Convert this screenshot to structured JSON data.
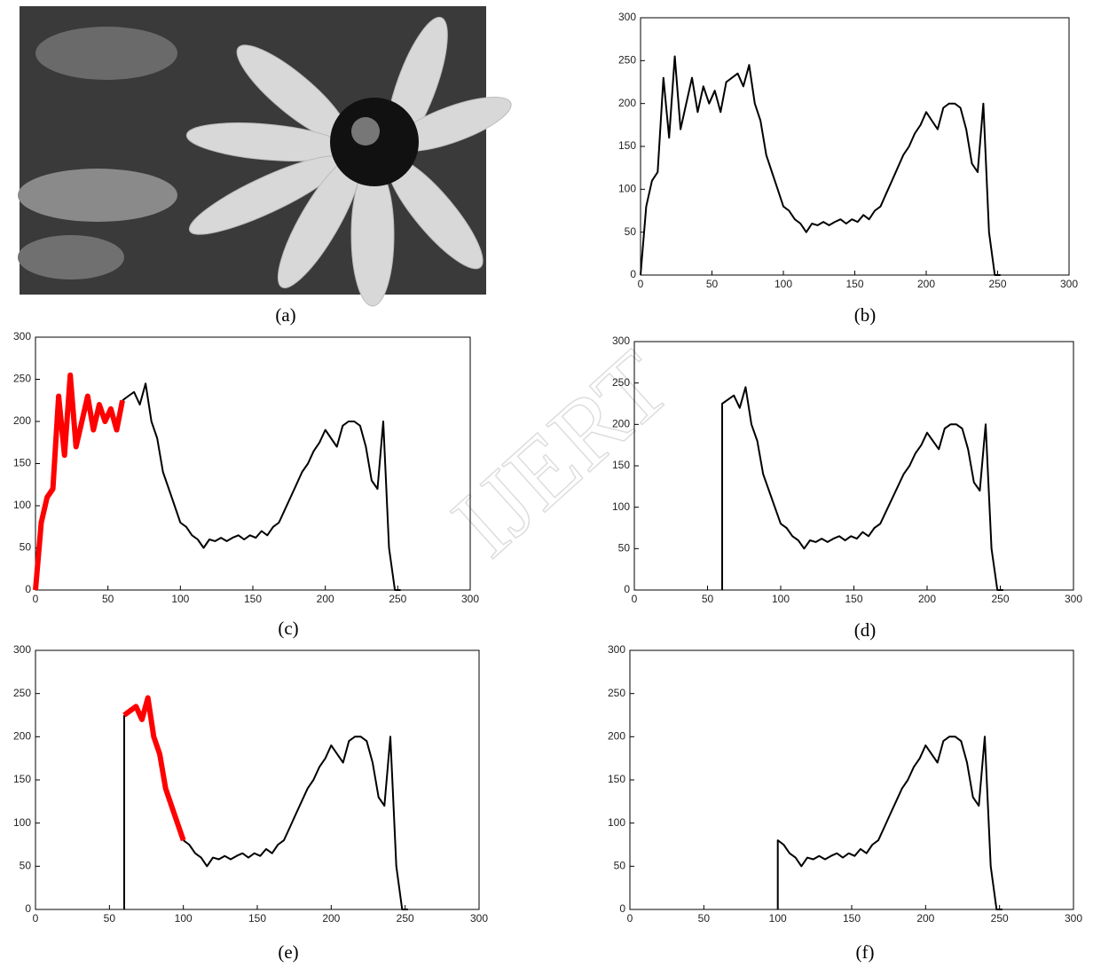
{
  "image_panel": {
    "caption": "(a)"
  },
  "watermark": "IJERT",
  "chart_data": [
    {
      "type": "line",
      "caption": "(b)",
      "xlim": [
        0,
        300
      ],
      "ylim": [
        0,
        300
      ],
      "xticks": [
        0,
        50,
        100,
        150,
        200,
        250,
        300
      ],
      "yticks": [
        0,
        50,
        100,
        150,
        200,
        250,
        300
      ],
      "series": [
        {
          "color": "#000000",
          "x": [
            0,
            4,
            8,
            12,
            16,
            20,
            24,
            28,
            32,
            36,
            40,
            44,
            48,
            52,
            56,
            60,
            64,
            68,
            72,
            76,
            80,
            84,
            88,
            92,
            96,
            100,
            104,
            108,
            112,
            116,
            120,
            124,
            128,
            132,
            136,
            140,
            144,
            148,
            152,
            156,
            160,
            164,
            168,
            172,
            176,
            180,
            184,
            188,
            192,
            196,
            200,
            204,
            208,
            212,
            216,
            220,
            224,
            228,
            232,
            236,
            240,
            244,
            248,
            252
          ],
          "values": [
            0,
            80,
            110,
            120,
            230,
            160,
            255,
            170,
            200,
            230,
            190,
            220,
            200,
            215,
            190,
            225,
            230,
            235,
            220,
            245,
            200,
            180,
            140,
            120,
            100,
            80,
            75,
            65,
            60,
            50,
            60,
            58,
            62,
            58,
            62,
            65,
            60,
            65,
            62,
            70,
            65,
            75,
            80,
            95,
            110,
            125,
            140,
            150,
            165,
            175,
            190,
            180,
            170,
            195,
            200,
            200,
            195,
            170,
            130,
            120,
            200,
            50,
            0,
            0
          ]
        }
      ]
    },
    {
      "type": "line",
      "caption": "(c)",
      "xlim": [
        0,
        300
      ],
      "ylim": [
        0,
        300
      ],
      "xticks": [
        0,
        50,
        100,
        150,
        200,
        250,
        300
      ],
      "yticks": [
        0,
        50,
        100,
        150,
        200,
        250,
        300
      ],
      "series": [
        {
          "color": "#000000",
          "x": [
            60,
            64,
            68,
            72,
            76,
            80,
            84,
            88,
            92,
            96,
            100,
            104,
            108,
            112,
            116,
            120,
            124,
            128,
            132,
            136,
            140,
            144,
            148,
            152,
            156,
            160,
            164,
            168,
            172,
            176,
            180,
            184,
            188,
            192,
            196,
            200,
            204,
            208,
            212,
            216,
            220,
            224,
            228,
            232,
            236,
            240,
            244,
            248,
            252
          ],
          "values": [
            225,
            230,
            235,
            220,
            245,
            200,
            180,
            140,
            120,
            100,
            80,
            75,
            65,
            60,
            50,
            60,
            58,
            62,
            58,
            62,
            65,
            60,
            65,
            62,
            70,
            65,
            75,
            80,
            95,
            110,
            125,
            140,
            150,
            165,
            175,
            190,
            180,
            170,
            195,
            200,
            200,
            195,
            170,
            130,
            120,
            200,
            50,
            0,
            0
          ]
        },
        {
          "color": "#ff0000",
          "x": [
            0,
            4,
            8,
            12,
            16,
            20,
            24,
            28,
            32,
            36,
            40,
            44,
            48,
            52,
            56,
            60
          ],
          "values": [
            0,
            80,
            110,
            120,
            230,
            160,
            255,
            170,
            200,
            230,
            190,
            220,
            200,
            215,
            190,
            225
          ]
        }
      ]
    },
    {
      "type": "line",
      "caption": "(d)",
      "xlim": [
        0,
        300
      ],
      "ylim": [
        0,
        300
      ],
      "xticks": [
        0,
        50,
        100,
        150,
        200,
        250,
        300
      ],
      "yticks": [
        0,
        50,
        100,
        150,
        200,
        250,
        300
      ],
      "series": [
        {
          "color": "#000000",
          "x": [
            60,
            60,
            64,
            68,
            72,
            76,
            80,
            84,
            88,
            92,
            96,
            100,
            104,
            108,
            112,
            116,
            120,
            124,
            128,
            132,
            136,
            140,
            144,
            148,
            152,
            156,
            160,
            164,
            168,
            172,
            176,
            180,
            184,
            188,
            192,
            196,
            200,
            204,
            208,
            212,
            216,
            220,
            224,
            228,
            232,
            236,
            240,
            244,
            248,
            252
          ],
          "values": [
            0,
            225,
            230,
            235,
            220,
            245,
            200,
            180,
            140,
            120,
            100,
            80,
            75,
            65,
            60,
            50,
            60,
            58,
            62,
            58,
            62,
            65,
            60,
            65,
            62,
            70,
            65,
            75,
            80,
            95,
            110,
            125,
            140,
            150,
            165,
            175,
            190,
            180,
            170,
            195,
            200,
            200,
            195,
            170,
            130,
            120,
            200,
            50,
            0,
            0
          ]
        }
      ]
    },
    {
      "type": "line",
      "caption": "(e)",
      "xlim": [
        0,
        300
      ],
      "ylim": [
        0,
        300
      ],
      "xticks": [
        0,
        50,
        100,
        150,
        200,
        250,
        300
      ],
      "yticks": [
        0,
        50,
        100,
        150,
        200,
        250,
        300
      ],
      "series": [
        {
          "color": "#000000",
          "x": [
            60,
            60
          ],
          "values": [
            0,
            225
          ]
        },
        {
          "color": "#000000",
          "x": [
            100,
            104,
            108,
            112,
            116,
            120,
            124,
            128,
            132,
            136,
            140,
            144,
            148,
            152,
            156,
            160,
            164,
            168,
            172,
            176,
            180,
            184,
            188,
            192,
            196,
            200,
            204,
            208,
            212,
            216,
            220,
            224,
            228,
            232,
            236,
            240,
            244,
            248,
            252
          ],
          "values": [
            80,
            75,
            65,
            60,
            50,
            60,
            58,
            62,
            58,
            62,
            65,
            60,
            65,
            62,
            70,
            65,
            75,
            80,
            95,
            110,
            125,
            140,
            150,
            165,
            175,
            190,
            180,
            170,
            195,
            200,
            200,
            195,
            170,
            130,
            120,
            200,
            50,
            0,
            0
          ]
        },
        {
          "color": "#ff0000",
          "x": [
            60,
            64,
            68,
            72,
            76,
            80,
            84,
            88,
            92,
            96,
            100
          ],
          "values": [
            225,
            230,
            235,
            220,
            245,
            200,
            180,
            140,
            120,
            100,
            80
          ]
        }
      ]
    },
    {
      "type": "line",
      "caption": "(f)",
      "xlim": [
        0,
        300
      ],
      "ylim": [
        0,
        300
      ],
      "xticks": [
        0,
        50,
        100,
        150,
        200,
        250,
        300
      ],
      "yticks": [
        0,
        50,
        100,
        150,
        200,
        250,
        300
      ],
      "series": [
        {
          "color": "#000000",
          "x": [
            100,
            100,
            104,
            108,
            112,
            116,
            120,
            124,
            128,
            132,
            136,
            140,
            144,
            148,
            152,
            156,
            160,
            164,
            168,
            172,
            176,
            180,
            184,
            188,
            192,
            196,
            200,
            204,
            208,
            212,
            216,
            220,
            224,
            228,
            232,
            236,
            240,
            244,
            248,
            252
          ],
          "values": [
            0,
            80,
            75,
            65,
            60,
            50,
            60,
            58,
            62,
            58,
            62,
            65,
            60,
            65,
            62,
            70,
            65,
            75,
            80,
            95,
            110,
            125,
            140,
            150,
            165,
            175,
            190,
            180,
            170,
            195,
            200,
            200,
            195,
            170,
            130,
            120,
            200,
            50,
            0,
            0
          ]
        }
      ]
    }
  ]
}
